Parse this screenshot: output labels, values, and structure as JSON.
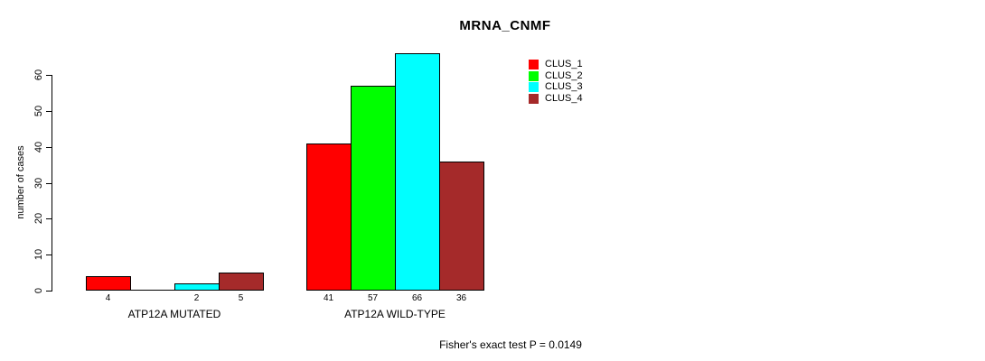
{
  "chart_data": {
    "type": "bar",
    "title": "MRNA_CNMF",
    "xlabel": "",
    "ylabel": "number of cases",
    "ylim": [
      0,
      66
    ],
    "yticks": [
      0,
      10,
      20,
      30,
      40,
      50,
      60
    ],
    "grid": false,
    "legend_position": "top-right",
    "categories": [
      "ATP12A MUTATED",
      "ATP12A WILD-TYPE"
    ],
    "series": [
      {
        "name": "CLUS_1",
        "color": "#FF0000",
        "values": [
          4,
          41
        ]
      },
      {
        "name": "CLUS_2",
        "color": "#00FF00",
        "values": [
          0,
          57
        ]
      },
      {
        "name": "CLUS_3",
        "color": "#00FFFF",
        "values": [
          2,
          66
        ]
      },
      {
        "name": "CLUS_4",
        "color": "#A52A2A",
        "values": [
          5,
          36
        ]
      }
    ],
    "bar_value_labels": [
      [
        "4",
        "",
        "2",
        "5"
      ],
      [
        "41",
        "57",
        "66",
        "36"
      ]
    ],
    "annotation": "Fisher's exact test P = 0.0149"
  }
}
